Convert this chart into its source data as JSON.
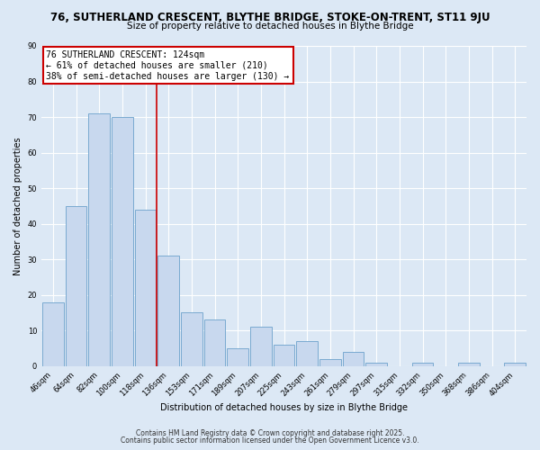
{
  "title": "76, SUTHERLAND CRESCENT, BLYTHE BRIDGE, STOKE-ON-TRENT, ST11 9JU",
  "subtitle": "Size of property relative to detached houses in Blythe Bridge",
  "xlabel": "Distribution of detached houses by size in Blythe Bridge",
  "ylabel": "Number of detached properties",
  "categories": [
    "46sqm",
    "64sqm",
    "82sqm",
    "100sqm",
    "118sqm",
    "136sqm",
    "153sqm",
    "171sqm",
    "189sqm",
    "207sqm",
    "225sqm",
    "243sqm",
    "261sqm",
    "279sqm",
    "297sqm",
    "315sqm",
    "332sqm",
    "350sqm",
    "368sqm",
    "386sqm",
    "404sqm"
  ],
  "values": [
    18,
    45,
    71,
    70,
    44,
    31,
    15,
    13,
    5,
    11,
    6,
    7,
    2,
    4,
    1,
    0,
    1,
    0,
    1,
    0,
    1
  ],
  "bar_color": "#c8d8ee",
  "bar_edge_color": "#7aaad0",
  "ylim": [
    0,
    90
  ],
  "yticks": [
    0,
    10,
    20,
    30,
    40,
    50,
    60,
    70,
    80,
    90
  ],
  "property_line_x": 4.5,
  "annotation_line1": "76 SUTHERLAND CRESCENT: 124sqm",
  "annotation_line2": "← 61% of detached houses are smaller (210)",
  "annotation_line3": "38% of semi-detached houses are larger (130) →",
  "annotation_box_color": "#ffffff",
  "annotation_box_edge_color": "#cc0000",
  "vline_color": "#cc0000",
  "footer_line1": "Contains HM Land Registry data © Crown copyright and database right 2025.",
  "footer_line2": "Contains public sector information licensed under the Open Government Licence v3.0.",
  "background_color": "#dce8f5",
  "plot_background_color": "#dce8f5",
  "grid_color": "#ffffff",
  "title_fontsize": 8.5,
  "subtitle_fontsize": 7.5,
  "axis_label_fontsize": 7,
  "tick_fontsize": 6,
  "annotation_fontsize": 7,
  "footer_fontsize": 5.5
}
